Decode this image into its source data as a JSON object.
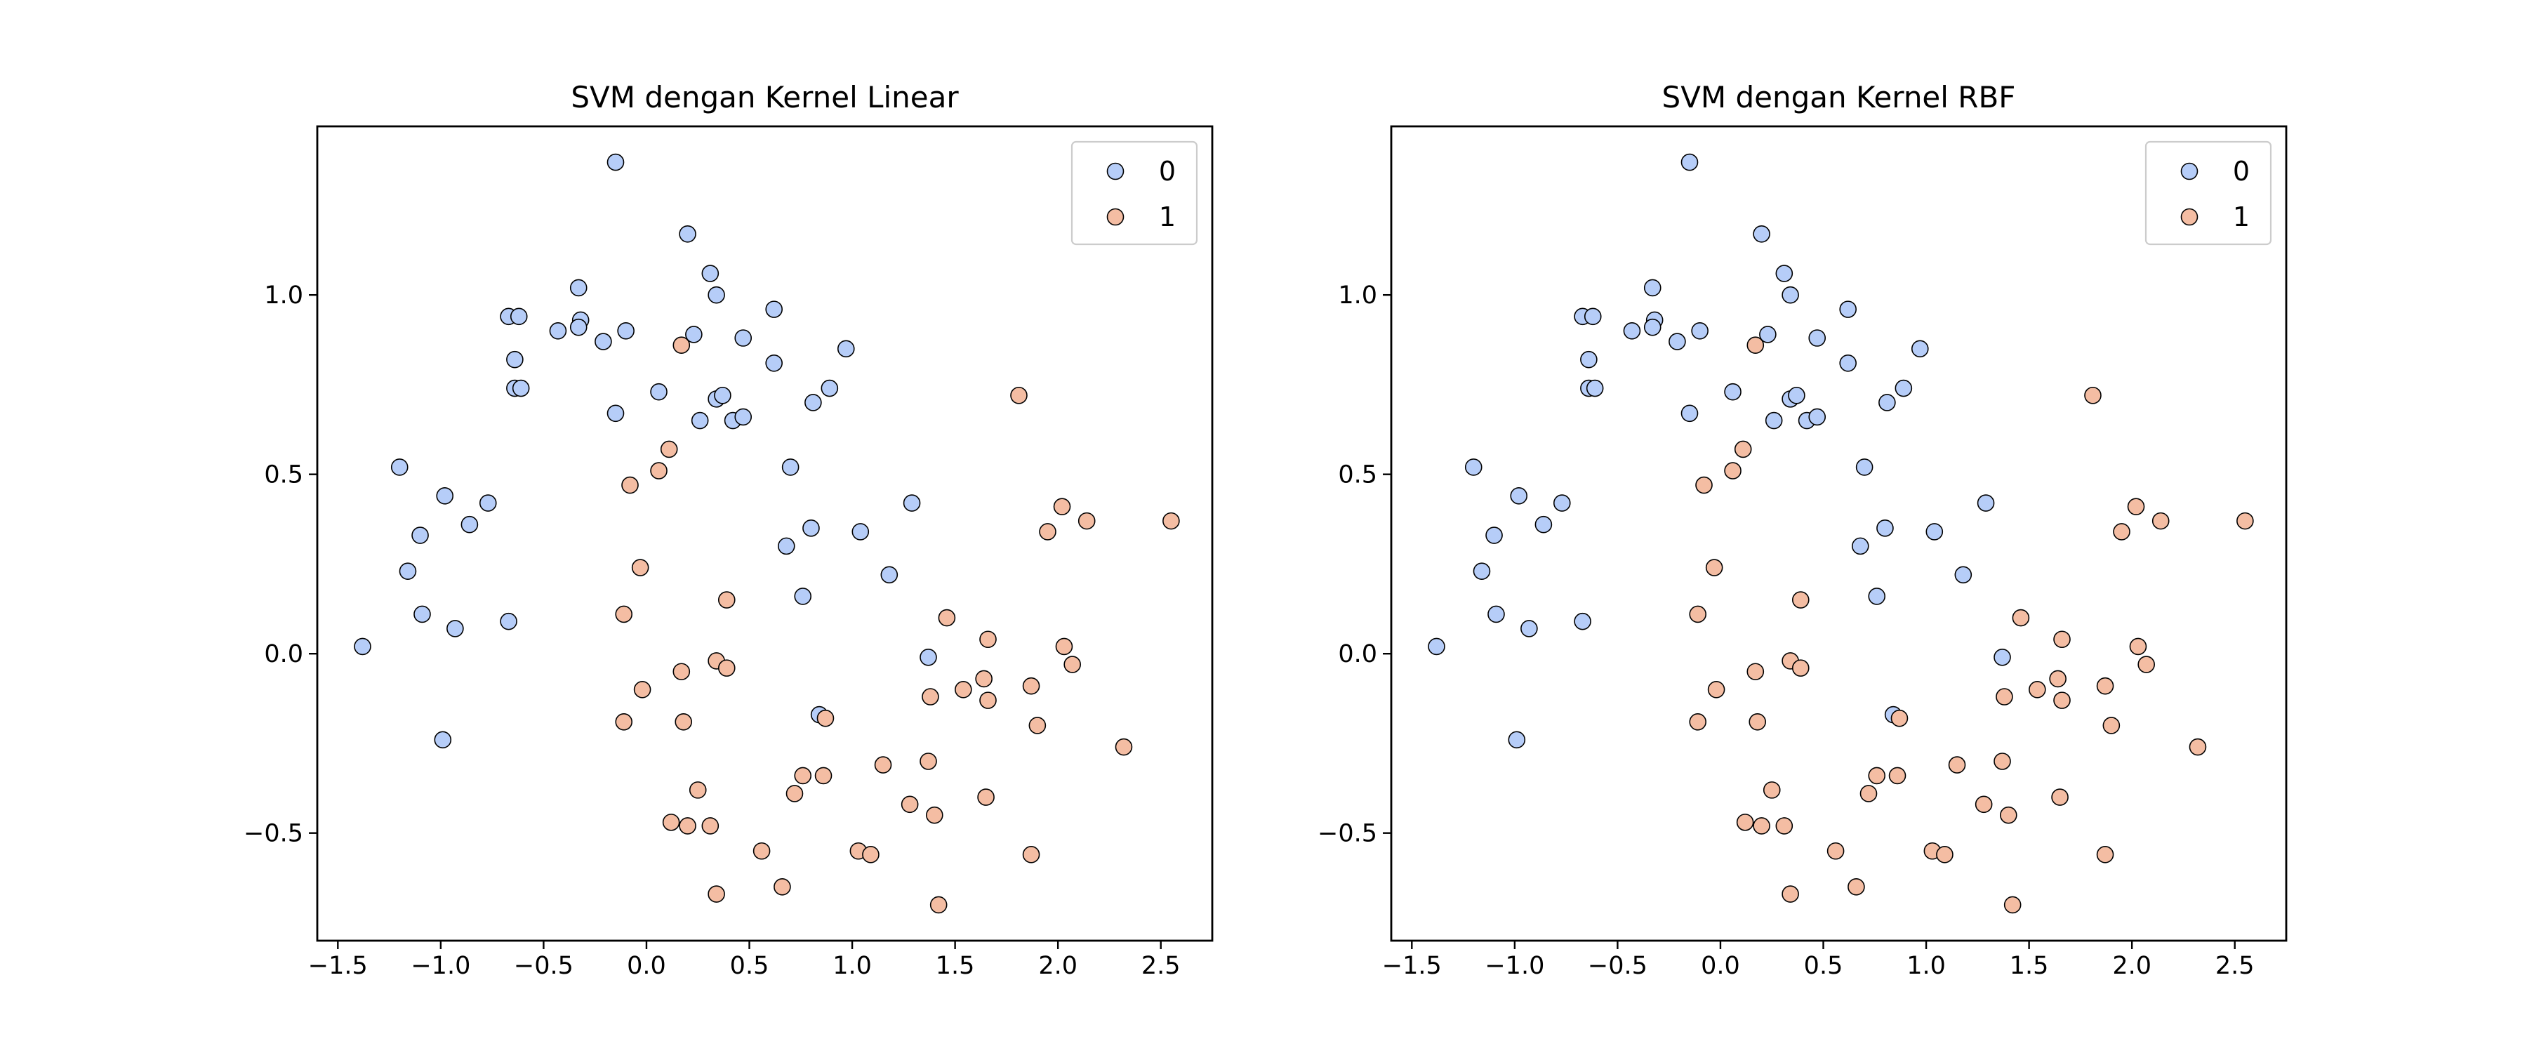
{
  "chart_data": [
    {
      "type": "scatter",
      "title": "SVM dengan Kernel Linear",
      "xlabel": "",
      "ylabel": "",
      "xlim": [
        -1.6,
        2.75
      ],
      "ylim": [
        -0.8,
        1.47
      ],
      "xticks": [
        -1.5,
        -1.0,
        -0.5,
        0.0,
        0.5,
        1.0,
        1.5,
        2.0,
        2.5
      ],
      "xtick_labels": [
        "−1.5",
        "−1.0",
        "−0.5",
        "0.0",
        "0.5",
        "1.0",
        "1.5",
        "2.0",
        "2.5"
      ],
      "yticks": [
        -0.5,
        0.0,
        0.5,
        1.0
      ],
      "ytick_labels": [
        "−0.5",
        "0.0",
        "0.5",
        "1.0"
      ],
      "grid": false,
      "legend_position": "top-right",
      "legend": [
        "0",
        "1"
      ],
      "series_ref": "points"
    },
    {
      "type": "scatter",
      "title": "SVM dengan Kernel RBF",
      "xlabel": "",
      "ylabel": "",
      "xlim": [
        -1.6,
        2.75
      ],
      "ylim": [
        -0.8,
        1.47
      ],
      "xticks": [
        -1.5,
        -1.0,
        -0.5,
        0.0,
        0.5,
        1.0,
        1.5,
        2.0,
        2.5
      ],
      "xtick_labels": [
        "−1.5",
        "−1.0",
        "−0.5",
        "0.0",
        "0.5",
        "1.0",
        "1.5",
        "2.0",
        "2.5"
      ],
      "yticks": [
        -0.5,
        0.0,
        0.5,
        1.0
      ],
      "ytick_labels": [
        "−0.5",
        "0.0",
        "0.5",
        "1.0"
      ],
      "grid": false,
      "legend_position": "top-right",
      "legend": [
        "0",
        "1"
      ],
      "series_ref": "points"
    }
  ],
  "points": {
    "class_colors": {
      "0": "#b6cdf8",
      "1": "#f4bda3"
    },
    "series": [
      {
        "name": "0",
        "x": [
          -0.15,
          0.2,
          0.31,
          -0.33,
          0.34,
          0.62,
          -0.67,
          -0.62,
          -0.32,
          -0.33,
          -0.43,
          -0.21,
          -0.1,
          0.23,
          0.47,
          0.97,
          0.62,
          -0.64,
          -0.64,
          -0.61,
          0.89,
          0.06,
          -0.15,
          0.34,
          0.37,
          0.26,
          0.42,
          0.47,
          0.81,
          -1.2,
          -0.98,
          -1.1,
          -0.77,
          -1.16,
          -0.86,
          0.7,
          1.29,
          0.8,
          1.04,
          0.68,
          1.18,
          0.76,
          -1.09,
          -0.93,
          -0.67,
          -1.38,
          1.37,
          0.84,
          -0.99
        ],
        "y": [
          1.37,
          1.17,
          1.06,
          1.02,
          1.0,
          0.96,
          0.94,
          0.94,
          0.93,
          0.91,
          0.9,
          0.87,
          0.9,
          0.89,
          0.88,
          0.85,
          0.81,
          0.82,
          0.74,
          0.74,
          0.74,
          0.73,
          0.67,
          0.71,
          0.72,
          0.65,
          0.65,
          0.66,
          0.7,
          0.52,
          0.44,
          0.33,
          0.42,
          0.23,
          0.36,
          0.52,
          0.42,
          0.35,
          0.34,
          0.3,
          0.22,
          0.16,
          0.11,
          0.07,
          0.09,
          0.02,
          -0.01,
          -0.17,
          -0.24
        ]
      },
      {
        "name": "1",
        "x": [
          0.17,
          1.81,
          0.11,
          0.06,
          -0.08,
          2.02,
          2.14,
          2.55,
          1.95,
          -0.03,
          0.39,
          -0.11,
          1.46,
          1.66,
          2.03,
          0.34,
          2.07,
          0.39,
          0.17,
          1.64,
          1.54,
          -0.02,
          1.38,
          1.87,
          1.66,
          0.87,
          -0.11,
          0.18,
          1.9,
          2.32,
          1.15,
          1.37,
          0.76,
          0.86,
          0.25,
          0.72,
          1.65,
          1.28,
          0.12,
          0.2,
          0.31,
          1.4,
          0.56,
          1.03,
          1.09,
          1.87,
          0.66,
          0.34,
          1.42
        ],
        "y": [
          0.86,
          0.72,
          0.57,
          0.51,
          0.47,
          0.41,
          0.37,
          0.37,
          0.34,
          0.24,
          0.15,
          0.11,
          0.1,
          0.04,
          0.02,
          -0.02,
          -0.03,
          -0.04,
          -0.05,
          -0.07,
          -0.1,
          -0.1,
          -0.12,
          -0.09,
          -0.13,
          -0.18,
          -0.19,
          -0.19,
          -0.2,
          -0.26,
          -0.31,
          -0.3,
          -0.34,
          -0.34,
          -0.38,
          -0.39,
          -0.4,
          -0.42,
          -0.47,
          -0.48,
          -0.48,
          -0.45,
          -0.55,
          -0.55,
          -0.56,
          -0.56,
          -0.65,
          -0.67,
          -0.7
        ]
      }
    ]
  }
}
